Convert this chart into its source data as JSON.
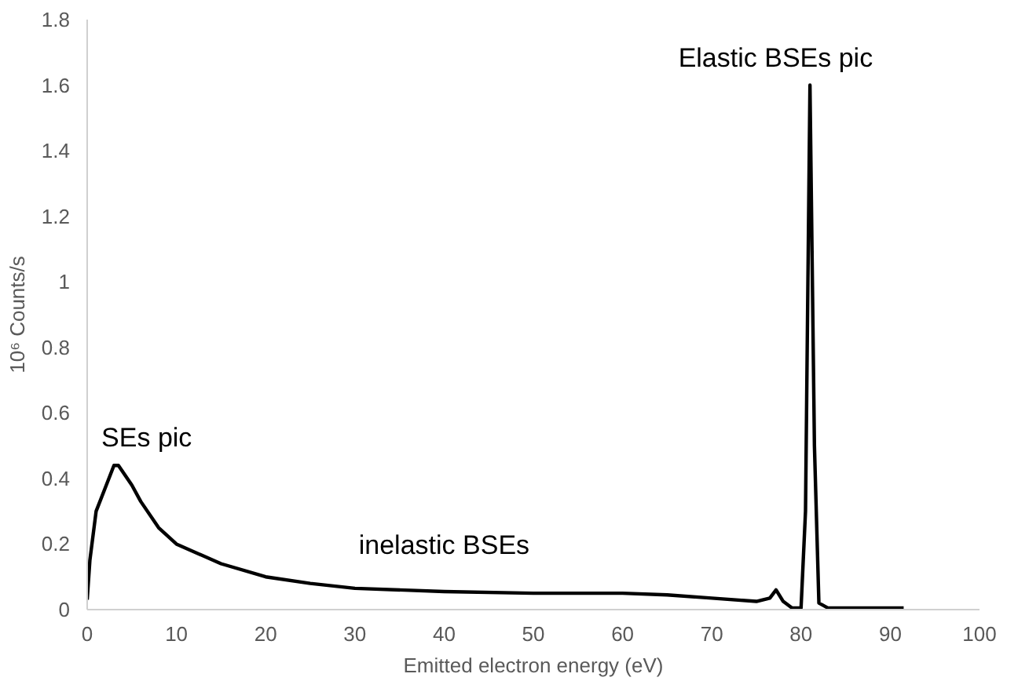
{
  "chart_data": {
    "type": "line",
    "xlabel": "Emitted electron energy (eV)",
    "ylabel": "10⁶ Counts/s",
    "x": [
      0,
      0.3,
      1,
      2,
      3,
      3.5,
      5,
      6,
      8,
      10,
      15,
      20,
      25,
      30,
      40,
      50,
      60,
      65,
      70,
      75,
      76.5,
      77.2,
      78,
      79,
      80,
      80.5,
      81,
      81.5,
      82,
      83,
      91.5
    ],
    "series": [
      {
        "color": "#000000",
        "values": [
          0.03,
          0.15,
          0.3,
          0.37,
          0.44,
          0.44,
          0.38,
          0.33,
          0.25,
          0.2,
          0.14,
          0.1,
          0.08,
          0.065,
          0.055,
          0.05,
          0.05,
          0.045,
          0.035,
          0.025,
          0.035,
          0.06,
          0.025,
          0.005,
          0.005,
          0.3,
          1.6,
          0.5,
          0.02,
          0.005,
          0.005
        ]
      }
    ],
    "xlim": [
      0,
      100
    ],
    "xticks": [
      0,
      10,
      20,
      30,
      40,
      50,
      60,
      70,
      80,
      90,
      100
    ],
    "ylim": [
      0,
      1.8
    ],
    "yticks": [
      0,
      0.2,
      0.4,
      0.6,
      0.8,
      1,
      1.2,
      1.4,
      1.6,
      1.8
    ],
    "grid": false,
    "marker": "none",
    "line_style": "solid",
    "annotations": [
      {
        "text": "SEs pic",
        "x": 3,
        "y": 0.44
      },
      {
        "text": "inelastic BSEs",
        "x": 40,
        "y": 0.055
      },
      {
        "text": "Elastic BSEs pic",
        "x": 81,
        "y": 1.6
      }
    ]
  }
}
